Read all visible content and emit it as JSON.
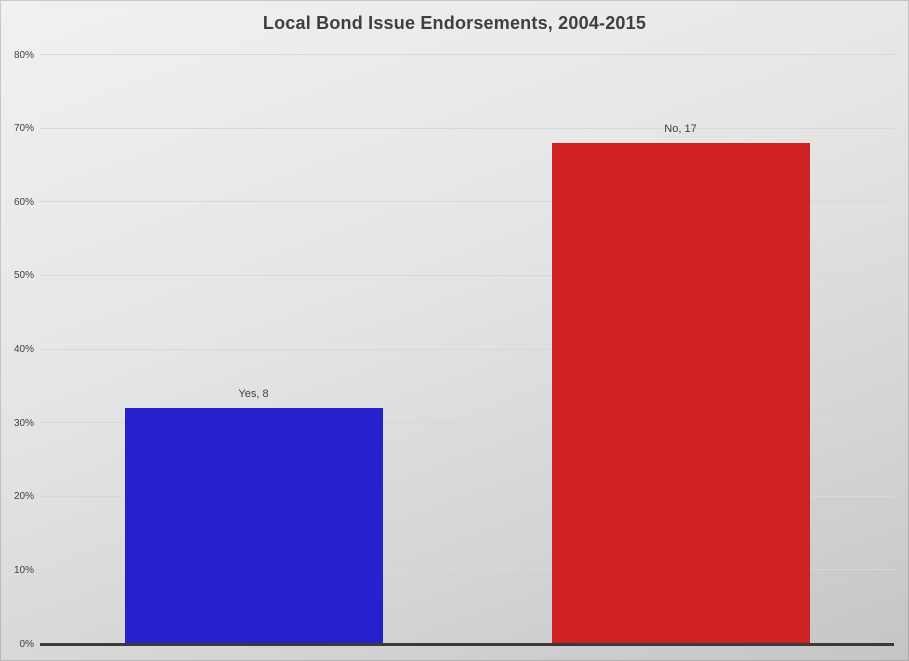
{
  "chart_data": {
    "type": "bar",
    "title": "Local Bond Issue Endorsements, 2004-2015",
    "categories": [
      "Yes",
      "No"
    ],
    "values": [
      32,
      68
    ],
    "counts": [
      8,
      17
    ],
    "data_labels": [
      "Yes, 8",
      "No, 17"
    ],
    "bar_colors": [
      "#2421cd",
      "#cf2121"
    ],
    "xlabel": "",
    "ylabel": "",
    "ylim": [
      0,
      80
    ],
    "ytick_step": 10,
    "ytick_labels": [
      "0%",
      "10%",
      "20%",
      "30%",
      "40%",
      "50%",
      "60%",
      "70%",
      "80%"
    ],
    "grid": true,
    "legend": "none",
    "units": "percent",
    "colors": {
      "text": "#404040",
      "title_text": "#3f3f3f",
      "axis_line": "#3a3a3a",
      "gridline": "#d8d8d8",
      "background_top": "#f1f1f1",
      "background_bottom": "#c5c5c5"
    }
  }
}
